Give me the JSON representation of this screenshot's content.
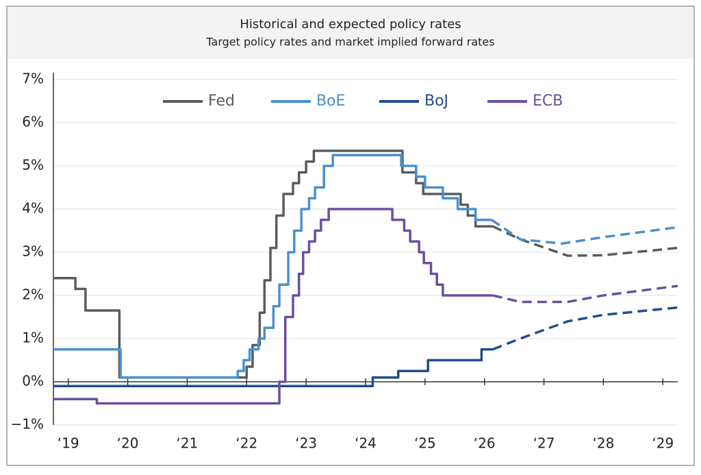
{
  "chart_data": {
    "type": "line",
    "title": "Historical and expected policy rates",
    "subtitle": "Target policy rates and market implied forward rates",
    "xlim": [
      2018.75,
      2029.25
    ],
    "xticks": [
      {
        "value": 2019,
        "label": "‘19"
      },
      {
        "value": 2020,
        "label": "‘20"
      },
      {
        "value": 2021,
        "label": "‘21"
      },
      {
        "value": 2022,
        "label": "‘22"
      },
      {
        "value": 2023,
        "label": "‘23"
      },
      {
        "value": 2024,
        "label": "‘24"
      },
      {
        "value": 2025,
        "label": "‘25"
      },
      {
        "value": 2026,
        "label": "‘26"
      },
      {
        "value": 2027,
        "label": "‘27"
      },
      {
        "value": 2028,
        "label": "‘28"
      },
      {
        "value": 2029,
        "label": "‘29"
      }
    ],
    "ylim": [
      -1,
      7
    ],
    "yticks": [
      {
        "value": -1,
        "label": "−1%"
      },
      {
        "value": 0,
        "label": "0%"
      },
      {
        "value": 1,
        "label": "1%"
      },
      {
        "value": 2,
        "label": "2%"
      },
      {
        "value": 3,
        "label": "3%"
      },
      {
        "value": 4,
        "label": "4%"
      },
      {
        "value": 5,
        "label": "5%"
      },
      {
        "value": 6,
        "label": "6%"
      },
      {
        "value": 7,
        "label": "7%"
      }
    ],
    "grid": true,
    "legend": "top",
    "step_line": true,
    "series": [
      {
        "name": "Fed",
        "color": "#575c5f",
        "forecast_from": 2026.14,
        "x": [
          2018.75,
          2019.12,
          2019.29,
          2019.86,
          2022.0,
          2022.1,
          2022.22,
          2022.3,
          2022.4,
          2022.5,
          2022.62,
          2022.78,
          2022.88,
          2023.0,
          2023.13,
          2024.62,
          2024.85,
          2024.97,
          2025.6,
          2025.72,
          2025.85,
          2026.14,
          2026.6,
          2027.4,
          2028.0,
          2029.25
        ],
        "values": [
          2.4,
          2.15,
          1.65,
          0.1,
          0.35,
          0.85,
          1.6,
          2.35,
          3.1,
          3.85,
          4.35,
          4.6,
          4.85,
          5.1,
          5.35,
          4.85,
          4.6,
          4.35,
          4.1,
          3.85,
          3.6,
          3.6,
          3.3,
          2.92,
          2.93,
          3.1
        ]
      },
      {
        "name": "BoE",
        "color": "#4a90d0",
        "forecast_from": 2026.12,
        "x": [
          2018.75,
          2019.88,
          2021.85,
          2021.95,
          2022.05,
          2022.2,
          2022.3,
          2022.45,
          2022.55,
          2022.7,
          2022.8,
          2022.92,
          2023.05,
          2023.15,
          2023.3,
          2023.45,
          2024.6,
          2024.85,
          2025.0,
          2025.3,
          2025.55,
          2025.85,
          2026.12,
          2026.6,
          2027.3,
          2028.0,
          2029.25
        ],
        "values": [
          0.75,
          0.1,
          0.25,
          0.5,
          0.75,
          1.0,
          1.25,
          1.75,
          2.25,
          3.0,
          3.5,
          4.0,
          4.25,
          4.5,
          5.0,
          5.25,
          5.0,
          4.75,
          4.5,
          4.25,
          4.0,
          3.75,
          3.75,
          3.3,
          3.2,
          3.35,
          3.58
        ]
      },
      {
        "name": "BoJ",
        "color": "#1f4e8c",
        "forecast_from": 2026.14,
        "x": [
          2018.75,
          2024.12,
          2024.55,
          2025.05,
          2025.95,
          2026.14,
          2026.6,
          2027.4,
          2028.0,
          2029.25
        ],
        "values": [
          -0.1,
          0.1,
          0.25,
          0.5,
          0.75,
          0.75,
          1.0,
          1.4,
          1.55,
          1.72
        ]
      },
      {
        "name": "ECB",
        "color": "#6b4ea0",
        "forecast_from": 2026.14,
        "x": [
          2018.75,
          2019.48,
          2022.55,
          2022.65,
          2022.78,
          2022.88,
          2022.95,
          2023.05,
          2023.15,
          2023.25,
          2023.38,
          2024.45,
          2024.65,
          2024.75,
          2024.9,
          2024.98,
          2025.1,
          2025.2,
          2025.3,
          2026.14,
          2026.6,
          2027.4,
          2028.0,
          2029.25
        ],
        "values": [
          -0.4,
          -0.5,
          0.0,
          1.5,
          2.0,
          2.5,
          3.0,
          3.25,
          3.5,
          3.75,
          4.0,
          3.75,
          3.5,
          3.25,
          3.0,
          2.75,
          2.5,
          2.25,
          2.0,
          2.0,
          1.85,
          1.85,
          2.0,
          2.22
        ]
      }
    ]
  }
}
